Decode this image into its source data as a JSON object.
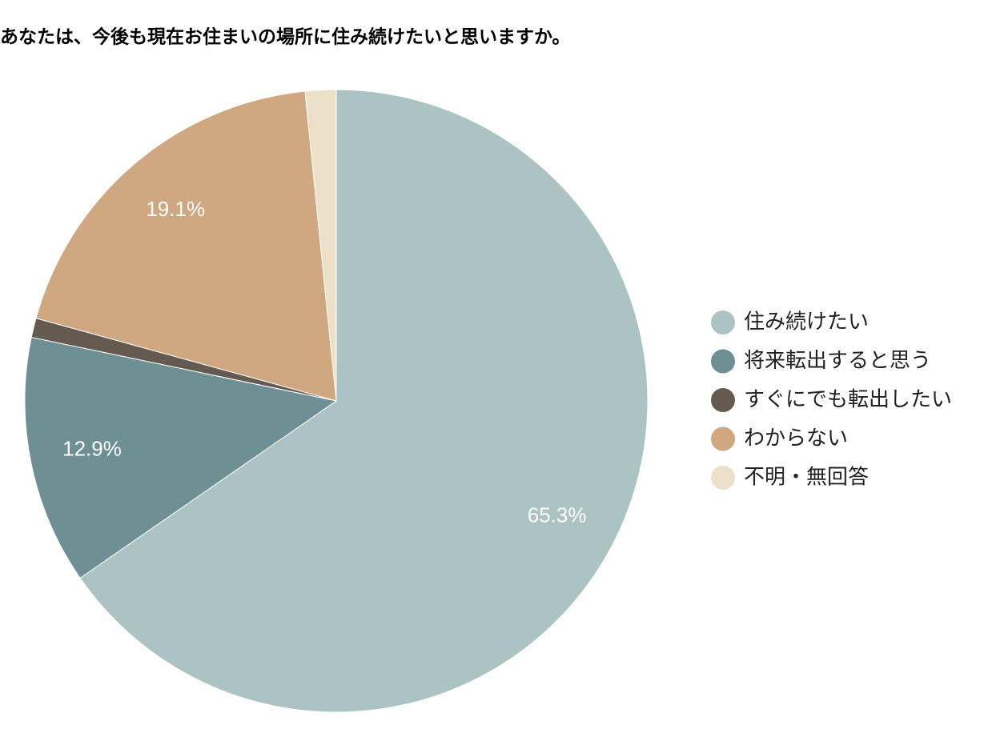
{
  "chart_data": {
    "type": "pie",
    "title": "あなたは、今後も現在お住まいの場所に住み続けたいと思いますか。",
    "categories": [
      "住み続けたい",
      "将来転出すると思う",
      "すぐにでも転出したい",
      "わからない",
      "不明・無回答"
    ],
    "values": [
      65.3,
      12.9,
      1.0,
      19.1,
      1.6
    ],
    "value_labels": [
      "65.3%",
      "12.9%",
      null,
      "19.1%",
      null
    ],
    "colors": [
      "#acc3c3",
      "#6e8f94",
      "#645a50",
      "#cfa882",
      "#ede0c8"
    ],
    "legend": "right"
  }
}
